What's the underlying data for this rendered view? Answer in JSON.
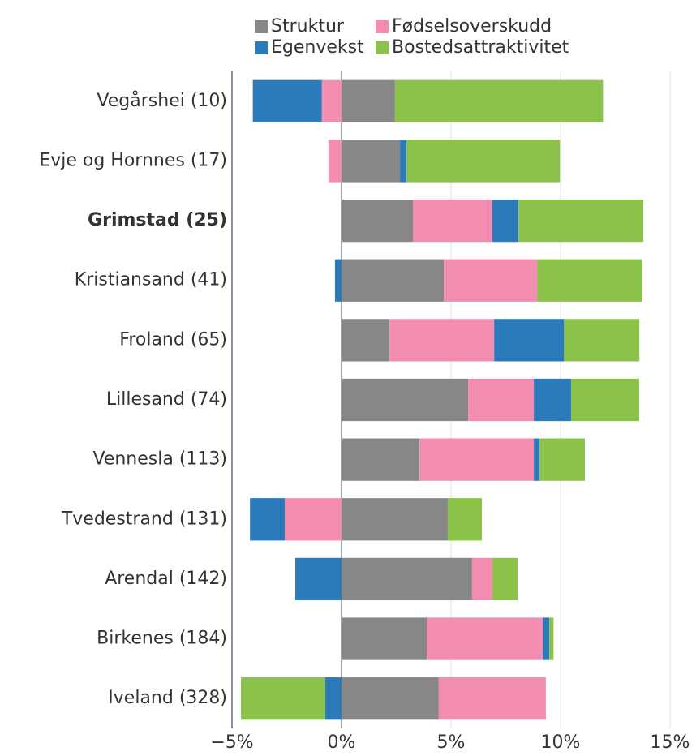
{
  "chart_data": {
    "type": "stacked_hbar",
    "categories": [
      "Vegårshei (10)",
      "Evje og Hornnes (17)",
      "Grimstad (25)",
      "Kristiansand (41)",
      "Froland (65)",
      "Lillesand (74)",
      "Vennesla (113)",
      "Tvedestrand (131)",
      "Arendal (142)",
      "Birkenes (184)",
      "Iveland (328)"
    ],
    "highlight_category": 2,
    "series": [
      {
        "name": "Struktur",
        "color": "#878787",
        "values": [
          2.44,
          2.67,
          3.26,
          4.67,
          2.19,
          5.78,
          3.56,
          4.85,
          5.96,
          3.89,
          4.44
        ]
      },
      {
        "name": "Fødselsoverskudd",
        "color": "#f28cb1",
        "values": [
          -0.9,
          -0.6,
          3.63,
          4.26,
          4.78,
          3.0,
          5.22,
          -2.59,
          0.93,
          5.3,
          4.89
        ]
      },
      {
        "name": "Egenvekst",
        "color": "#2b7bba",
        "values": [
          -3.15,
          0.3,
          1.19,
          -0.3,
          3.19,
          1.7,
          0.26,
          -1.59,
          -2.11,
          0.3,
          -0.74
        ]
      },
      {
        "name": "Bostedsattraktivitet",
        "color": "#8bc34a",
        "values": [
          9.5,
          7.0,
          5.7,
          4.81,
          3.44,
          3.11,
          2.07,
          1.56,
          1.15,
          0.19,
          -3.85
        ]
      }
    ],
    "xlim": [
      -5,
      15
    ],
    "xticks": [
      {
        "value": -5,
        "label": "−5%"
      },
      {
        "value": 0,
        "label": "0%"
      },
      {
        "value": 5,
        "label": "5%"
      },
      {
        "value": 10,
        "label": "10%"
      },
      {
        "value": 15,
        "label": "15%"
      }
    ],
    "grid": true
  }
}
